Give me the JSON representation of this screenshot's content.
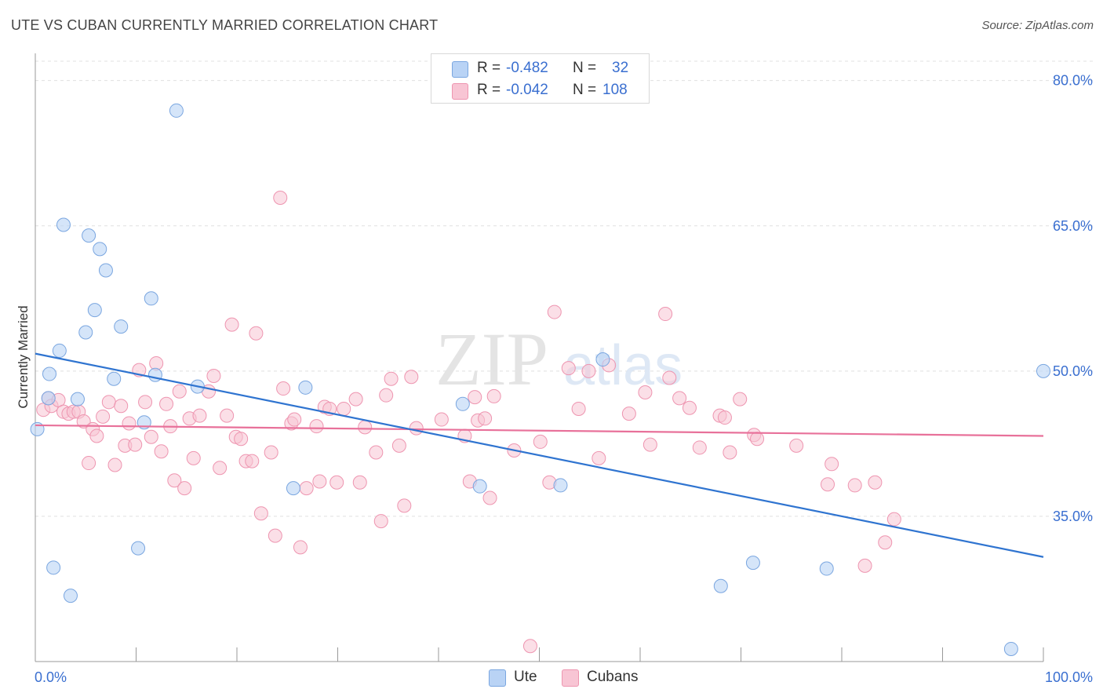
{
  "title": "UTE VS CUBAN CURRENTLY MARRIED CORRELATION CHART",
  "source": "Source: ZipAtlas.com",
  "watermark": {
    "zip": "ZIP",
    "atlas": "atlas"
  },
  "colors": {
    "ute_fill": "#b9d3f5",
    "ute_stroke": "#7aa6e0",
    "ute_line": "#2f74d0",
    "cuban_fill": "#f8c5d4",
    "cuban_stroke": "#ee95b0",
    "cuban_line": "#e8719a",
    "axis_label": "#3a6fd0",
    "grid": "#e0e0e0"
  },
  "stats": {
    "ute": {
      "r_label": "R =",
      "r_value": "-0.482",
      "n_label": "N =",
      "n_value": "32"
    },
    "cuban": {
      "r_label": "R =",
      "r_value": "-0.042",
      "n_label": "N =",
      "n_value": "108"
    }
  },
  "legend": {
    "ute": "Ute",
    "cuban": "Cubans"
  },
  "chart_data": {
    "type": "scatter",
    "title": "UTE VS CUBAN CURRENTLY MARRIED CORRELATION CHART",
    "xlabel": "",
    "ylabel": "Currently Married",
    "xlim": [
      0,
      100
    ],
    "ylim": [
      20,
      82
    ],
    "x_tick_labels": [
      "0.0%",
      "100.0%"
    ],
    "y_ticks": [
      35,
      50,
      65,
      80
    ],
    "y_tick_labels": [
      "35.0%",
      "50.0%",
      "65.0%",
      "80.0%"
    ],
    "series": [
      {
        "name": "Ute",
        "r": -0.482,
        "n": 32,
        "trend": {
          "x": [
            0,
            100
          ],
          "y": [
            51.8,
            30.8
          ]
        },
        "points": [
          [
            0.2,
            44.0
          ],
          [
            1.3,
            47.2
          ],
          [
            1.4,
            49.7
          ],
          [
            1.8,
            29.7
          ],
          [
            2.4,
            52.1
          ],
          [
            2.8,
            65.1
          ],
          [
            3.5,
            26.8
          ],
          [
            4.2,
            47.1
          ],
          [
            5.0,
            54.0
          ],
          [
            5.3,
            64.0
          ],
          [
            5.9,
            56.3
          ],
          [
            6.4,
            62.6
          ],
          [
            7.0,
            60.4
          ],
          [
            7.8,
            49.2
          ],
          [
            8.5,
            54.6
          ],
          [
            10.2,
            31.7
          ],
          [
            10.8,
            44.7
          ],
          [
            11.5,
            57.5
          ],
          [
            11.9,
            49.6
          ],
          [
            14.0,
            76.9
          ],
          [
            16.1,
            48.4
          ],
          [
            25.6,
            37.9
          ],
          [
            26.8,
            48.3
          ],
          [
            42.4,
            46.6
          ],
          [
            44.1,
            38.1
          ],
          [
            52.1,
            38.2
          ],
          [
            56.3,
            51.2
          ],
          [
            68.0,
            27.8
          ],
          [
            71.2,
            30.2
          ],
          [
            78.5,
            29.6
          ],
          [
            96.8,
            21.3
          ],
          [
            100.0,
            50.0
          ]
        ]
      },
      {
        "name": "Cubans",
        "r": -0.042,
        "n": 108,
        "trend": {
          "x": [
            0,
            100
          ],
          "y": [
            44.4,
            43.3
          ]
        },
        "points": [
          [
            0.8,
            46.0
          ],
          [
            1.3,
            47.2
          ],
          [
            1.6,
            46.4
          ],
          [
            2.3,
            47.0
          ],
          [
            2.8,
            45.8
          ],
          [
            3.3,
            45.6
          ],
          [
            3.8,
            45.8
          ],
          [
            4.3,
            45.8
          ],
          [
            4.8,
            44.8
          ],
          [
            5.3,
            40.5
          ],
          [
            5.7,
            44.0
          ],
          [
            6.1,
            43.3
          ],
          [
            6.7,
            45.3
          ],
          [
            7.3,
            46.8
          ],
          [
            7.9,
            40.3
          ],
          [
            8.5,
            46.4
          ],
          [
            8.9,
            42.3
          ],
          [
            9.3,
            44.6
          ],
          [
            9.9,
            42.4
          ],
          [
            10.3,
            50.1
          ],
          [
            10.9,
            46.8
          ],
          [
            11.5,
            43.2
          ],
          [
            12.0,
            50.8
          ],
          [
            12.5,
            41.7
          ],
          [
            13.0,
            46.6
          ],
          [
            13.4,
            44.3
          ],
          [
            13.8,
            38.7
          ],
          [
            14.3,
            47.9
          ],
          [
            14.8,
            37.9
          ],
          [
            15.3,
            45.1
          ],
          [
            15.7,
            41.0
          ],
          [
            16.3,
            45.4
          ],
          [
            17.2,
            47.9
          ],
          [
            17.7,
            49.5
          ],
          [
            18.3,
            40.0
          ],
          [
            19.0,
            45.4
          ],
          [
            19.5,
            54.8
          ],
          [
            19.9,
            43.2
          ],
          [
            20.4,
            43.0
          ],
          [
            20.9,
            40.7
          ],
          [
            21.5,
            40.7
          ],
          [
            21.9,
            53.9
          ],
          [
            22.4,
            35.3
          ],
          [
            23.4,
            41.6
          ],
          [
            23.8,
            33.0
          ],
          [
            24.3,
            67.9
          ],
          [
            24.6,
            48.2
          ],
          [
            25.4,
            44.6
          ],
          [
            25.7,
            45.0
          ],
          [
            26.3,
            31.8
          ],
          [
            26.9,
            37.9
          ],
          [
            27.9,
            44.3
          ],
          [
            28.2,
            38.6
          ],
          [
            28.7,
            46.3
          ],
          [
            29.2,
            46.1
          ],
          [
            29.9,
            38.5
          ],
          [
            30.6,
            46.1
          ],
          [
            31.8,
            47.1
          ],
          [
            32.2,
            38.5
          ],
          [
            32.7,
            44.2
          ],
          [
            33.8,
            41.6
          ],
          [
            34.3,
            34.5
          ],
          [
            34.8,
            47.5
          ],
          [
            35.3,
            49.2
          ],
          [
            36.1,
            42.3
          ],
          [
            36.6,
            36.1
          ],
          [
            37.3,
            49.4
          ],
          [
            37.8,
            44.1
          ],
          [
            40.3,
            45.0
          ],
          [
            42.6,
            43.3
          ],
          [
            43.1,
            38.6
          ],
          [
            43.6,
            47.3
          ],
          [
            43.9,
            44.9
          ],
          [
            44.6,
            45.1
          ],
          [
            45.1,
            36.9
          ],
          [
            45.5,
            47.4
          ],
          [
            47.5,
            41.8
          ],
          [
            49.1,
            21.6
          ],
          [
            50.1,
            42.7
          ],
          [
            51.0,
            38.5
          ],
          [
            51.5,
            56.1
          ],
          [
            52.9,
            50.3
          ],
          [
            53.9,
            46.1
          ],
          [
            54.9,
            50.0
          ],
          [
            55.9,
            41.0
          ],
          [
            56.9,
            50.6
          ],
          [
            58.9,
            45.6
          ],
          [
            60.5,
            47.8
          ],
          [
            61.0,
            42.4
          ],
          [
            62.5,
            55.9
          ],
          [
            62.9,
            49.3
          ],
          [
            63.9,
            47.2
          ],
          [
            64.9,
            46.2
          ],
          [
            65.9,
            42.1
          ],
          [
            67.9,
            45.4
          ],
          [
            68.4,
            45.2
          ],
          [
            68.9,
            41.6
          ],
          [
            69.9,
            47.1
          ],
          [
            71.3,
            43.4
          ],
          [
            71.6,
            43.0
          ],
          [
            75.5,
            42.3
          ],
          [
            78.6,
            38.3
          ],
          [
            79.0,
            40.4
          ],
          [
            81.3,
            38.2
          ],
          [
            82.3,
            29.9
          ],
          [
            83.3,
            38.5
          ],
          [
            84.3,
            32.3
          ],
          [
            85.2,
            34.7
          ]
        ]
      }
    ]
  }
}
